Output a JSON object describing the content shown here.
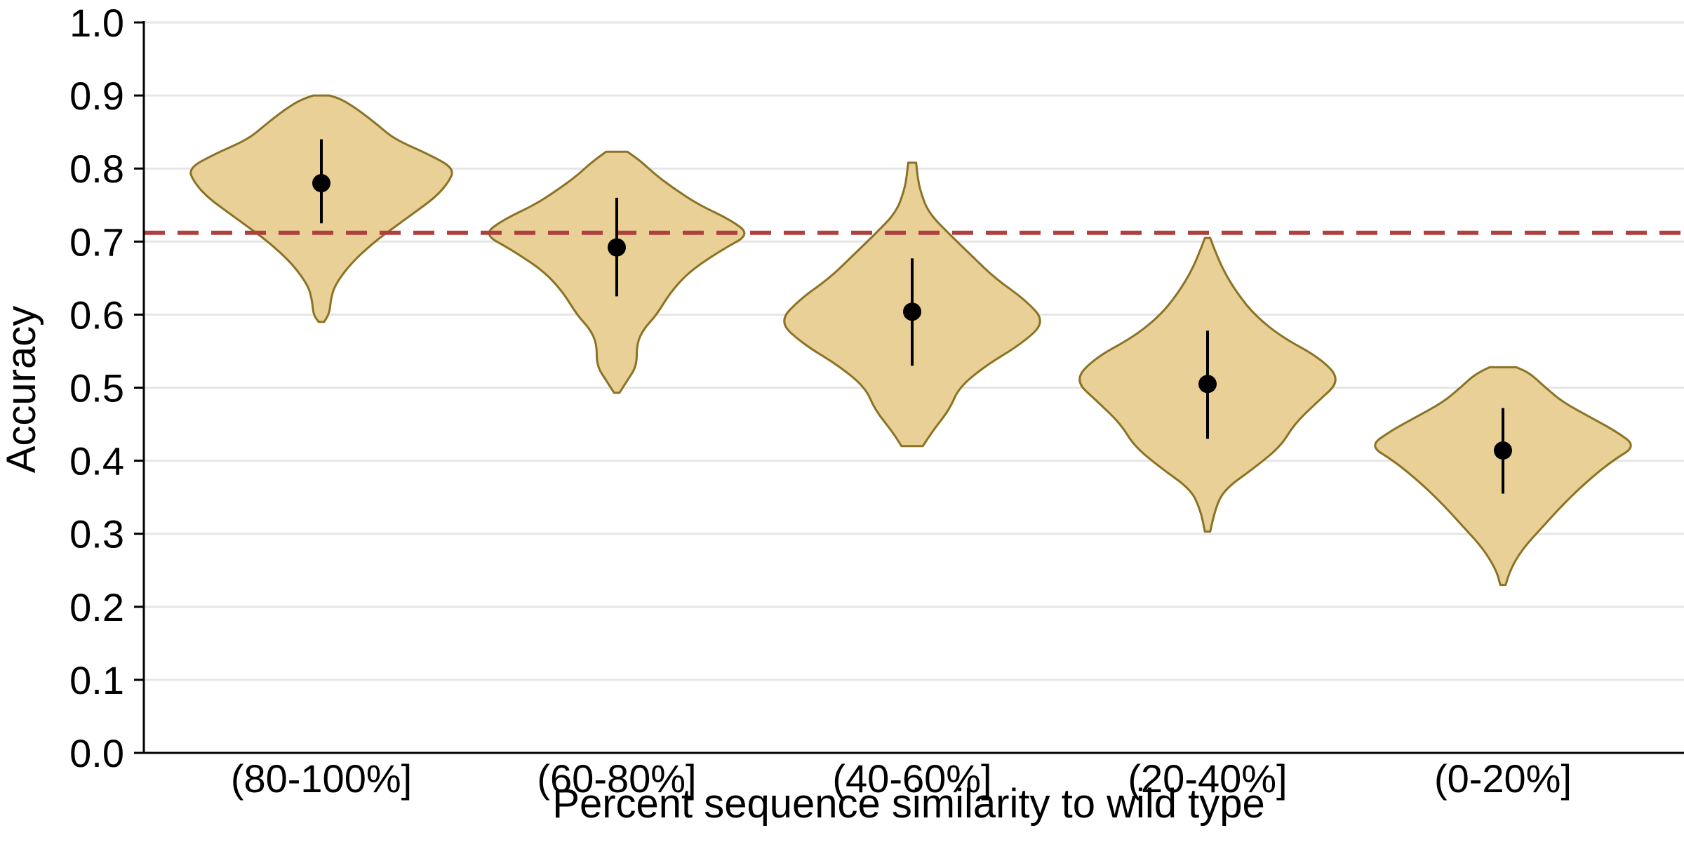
{
  "chart_data": {
    "type": "violin",
    "title": "",
    "xlabel": "Percent sequence similarity to wild type",
    "ylabel": "Accuracy",
    "ylim": [
      0.0,
      1.0
    ],
    "yticks": [
      "0.0",
      "0.1",
      "0.2",
      "0.3",
      "0.4",
      "0.5",
      "0.6",
      "0.7",
      "0.8",
      "0.9",
      "1.0"
    ],
    "grid": "horizontal",
    "reference_line": {
      "value": 0.712,
      "style": "dashed",
      "color": "#b04040"
    },
    "colors": {
      "violin_fill": "#e8d096",
      "violin_edge": "#8a7326",
      "marker": "#000000",
      "grid": "#e6e6e6"
    },
    "categories": [
      "(80-100%]",
      "(60-80%]",
      "(40-60%]",
      "(20-40%]",
      "(0-20%]"
    ],
    "groups": [
      {
        "category": "(80-100%]",
        "mean": 0.78,
        "ci": [
          0.725,
          0.84
        ],
        "range": [
          0.59,
          0.9
        ],
        "profile": [
          [
            0.59,
            0.02
          ],
          [
            0.6,
            0.06
          ],
          [
            0.62,
            0.07
          ],
          [
            0.64,
            0.1
          ],
          [
            0.67,
            0.22
          ],
          [
            0.7,
            0.4
          ],
          [
            0.72,
            0.55
          ],
          [
            0.74,
            0.7
          ],
          [
            0.76,
            0.85
          ],
          [
            0.78,
            0.95
          ],
          [
            0.8,
            1.0
          ],
          [
            0.82,
            0.8
          ],
          [
            0.84,
            0.55
          ],
          [
            0.86,
            0.42
          ],
          [
            0.88,
            0.28
          ],
          [
            0.895,
            0.15
          ],
          [
            0.9,
            0.06
          ]
        ]
      },
      {
        "category": "(60-80%]",
        "mean": 0.692,
        "ci": [
          0.625,
          0.76
        ],
        "range": [
          0.493,
          0.823
        ],
        "profile": [
          [
            0.493,
            0.02
          ],
          [
            0.51,
            0.08
          ],
          [
            0.53,
            0.15
          ],
          [
            0.56,
            0.15
          ],
          [
            0.58,
            0.2
          ],
          [
            0.6,
            0.3
          ],
          [
            0.63,
            0.4
          ],
          [
            0.66,
            0.55
          ],
          [
            0.69,
            0.8
          ],
          [
            0.71,
            1.0
          ],
          [
            0.73,
            0.85
          ],
          [
            0.75,
            0.62
          ],
          [
            0.77,
            0.45
          ],
          [
            0.79,
            0.3
          ],
          [
            0.81,
            0.18
          ],
          [
            0.823,
            0.08
          ]
        ]
      },
      {
        "category": "(40-60%]",
        "mean": 0.604,
        "ci": [
          0.53,
          0.677
        ],
        "range": [
          0.42,
          0.808
        ],
        "profile": [
          [
            0.42,
            0.08
          ],
          [
            0.44,
            0.15
          ],
          [
            0.47,
            0.28
          ],
          [
            0.5,
            0.35
          ],
          [
            0.53,
            0.55
          ],
          [
            0.56,
            0.82
          ],
          [
            0.59,
            1.0
          ],
          [
            0.62,
            0.85
          ],
          [
            0.65,
            0.62
          ],
          [
            0.68,
            0.45
          ],
          [
            0.71,
            0.28
          ],
          [
            0.74,
            0.12
          ],
          [
            0.77,
            0.06
          ],
          [
            0.79,
            0.04
          ],
          [
            0.808,
            0.03
          ]
        ]
      },
      {
        "category": "(20-40%]",
        "mean": 0.505,
        "ci": [
          0.43,
          0.578
        ],
        "range": [
          0.303,
          0.705
        ],
        "profile": [
          [
            0.303,
            0.02
          ],
          [
            0.33,
            0.05
          ],
          [
            0.36,
            0.12
          ],
          [
            0.39,
            0.35
          ],
          [
            0.42,
            0.55
          ],
          [
            0.45,
            0.65
          ],
          [
            0.48,
            0.82
          ],
          [
            0.51,
            1.0
          ],
          [
            0.54,
            0.85
          ],
          [
            0.57,
            0.55
          ],
          [
            0.6,
            0.35
          ],
          [
            0.63,
            0.22
          ],
          [
            0.66,
            0.12
          ],
          [
            0.69,
            0.05
          ],
          [
            0.705,
            0.02
          ]
        ]
      },
      {
        "category": "(0-20%]",
        "mean": 0.414,
        "ci": [
          0.355,
          0.472
        ],
        "range": [
          0.23,
          0.528
        ],
        "profile": [
          [
            0.23,
            0.02
          ],
          [
            0.25,
            0.05
          ],
          [
            0.28,
            0.15
          ],
          [
            0.31,
            0.3
          ],
          [
            0.34,
            0.45
          ],
          [
            0.37,
            0.62
          ],
          [
            0.4,
            0.82
          ],
          [
            0.42,
            1.0
          ],
          [
            0.44,
            0.85
          ],
          [
            0.46,
            0.65
          ],
          [
            0.48,
            0.45
          ],
          [
            0.5,
            0.32
          ],
          [
            0.52,
            0.2
          ],
          [
            0.528,
            0.1
          ]
        ]
      }
    ]
  }
}
